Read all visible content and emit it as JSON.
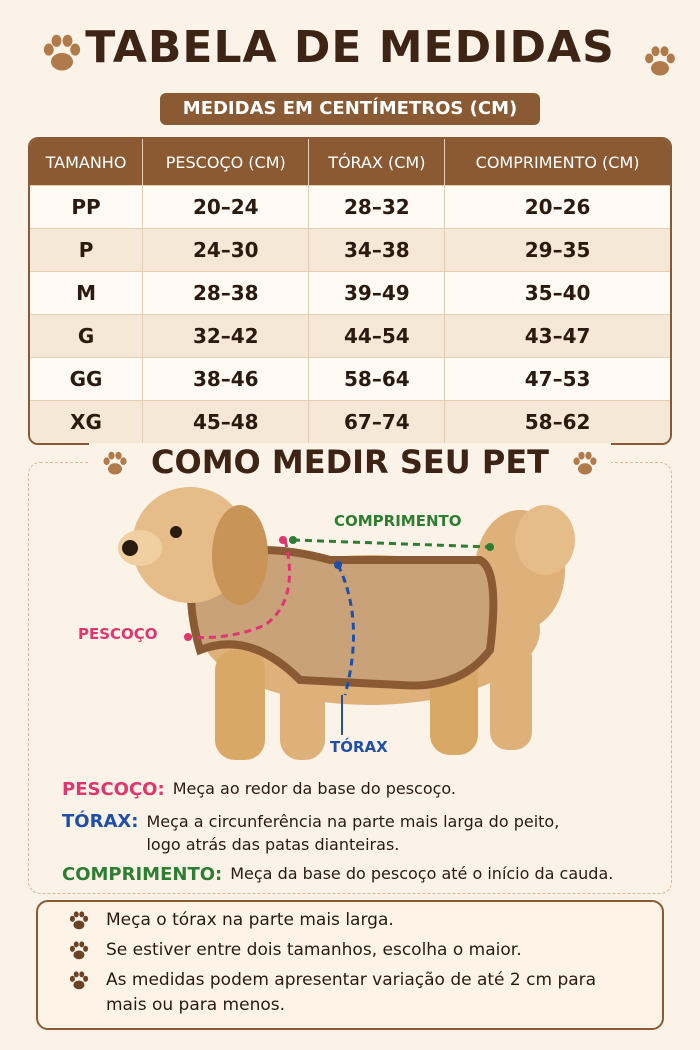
{
  "header": {
    "title": "TABELA DE MEDIDAS",
    "subtitle": "MEDIDAS EM CENTÍMETROS (CM)"
  },
  "table": {
    "columns": [
      "TAMANHO",
      "PESCOÇO (CM)",
      "TÓRAX (CM)",
      "COMPRIMENTO (CM)"
    ],
    "rows": [
      [
        "PP",
        "20–24",
        "28–32",
        "20–26"
      ],
      [
        "P",
        "24–30",
        "34–38",
        "29–35"
      ],
      [
        "M",
        "28–38",
        "39–49",
        "35–40"
      ],
      [
        "G",
        "32–42",
        "44–54",
        "43–47"
      ],
      [
        "GG",
        "38–46",
        "58–64",
        "47–53"
      ],
      [
        "XG",
        "45–48",
        "67–74",
        "58–62"
      ]
    ]
  },
  "guide": {
    "title": "COMO MEDIR SEU PET",
    "diagram_labels": {
      "length": "COMPRIMENTO",
      "neck": "PESCOÇO",
      "chest": "TÓRAX"
    },
    "instructions": [
      {
        "label": "PESCOÇO:",
        "text": "Meça ao redor da base do pescoço."
      },
      {
        "label": "TÓRAX:",
        "text": "Meça a circunferência na parte mais larga do peito, logo atrás das patas dianteiras."
      },
      {
        "label": "COMPRIMENTO:",
        "text": "Meça da base do pescoço até o início da cauda."
      }
    ]
  },
  "tips": [
    "Meça o tórax na parte mais larga.",
    "Se estiver entre dois tamanhos, escolha o maior.",
    "As medidas podem apresentar variação de até 2 cm para mais ou para menos."
  ]
}
